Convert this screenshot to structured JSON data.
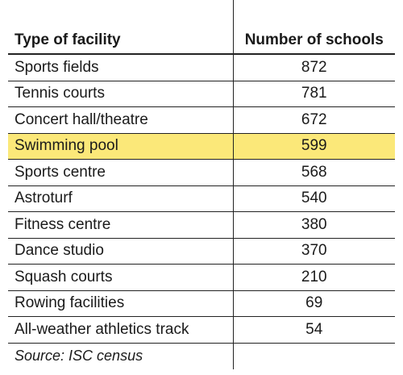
{
  "chart_data": {
    "type": "table",
    "columns": [
      "Type of facility",
      "Number of schools"
    ],
    "rows": [
      {
        "facility": "Sports fields",
        "schools": "872"
      },
      {
        "facility": "Tennis courts",
        "schools": "781"
      },
      {
        "facility": "Concert hall/theatre",
        "schools": "672"
      },
      {
        "facility": "Swimming pool",
        "schools": "599",
        "highlighted": true
      },
      {
        "facility": "Sports centre",
        "schools": "568"
      },
      {
        "facility": "Astroturf",
        "schools": "540"
      },
      {
        "facility": "Fitness centre",
        "schools": "380"
      },
      {
        "facility": "Dance studio",
        "schools": "370"
      },
      {
        "facility": "Squash courts",
        "schools": "210"
      },
      {
        "facility": "Rowing facilities",
        "schools": "69"
      },
      {
        "facility": "All-weather athletics track",
        "schools": "54"
      }
    ],
    "source": "Source: ISC census",
    "highlight_color": "#fbe879"
  }
}
